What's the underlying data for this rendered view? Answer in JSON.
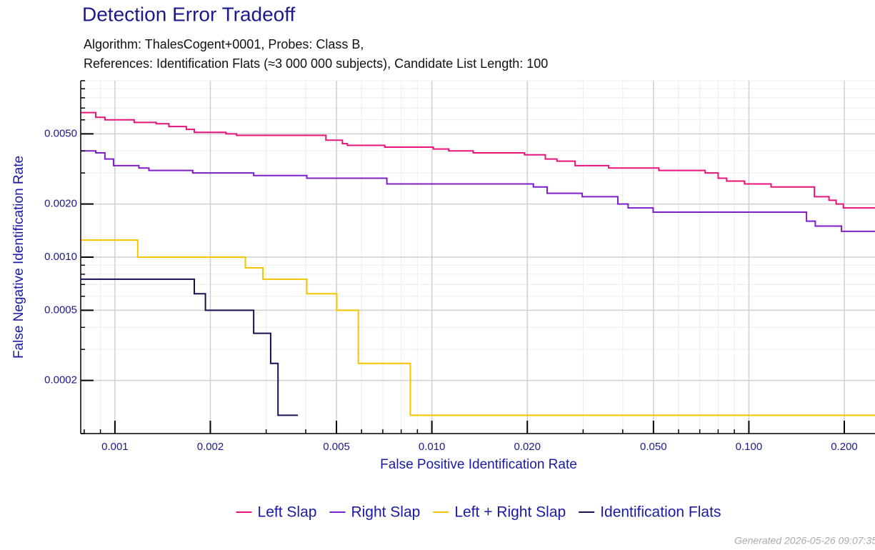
{
  "chart_data": {
    "type": "line",
    "title": "Detection Error Tradeoff",
    "subtitle": [
      "Algorithm: ThalesCogent+0001, Probes: Class B,",
      "References: Identification Flats (≈3 000 000 subjects), Candidate List Length: 100"
    ],
    "x_label": "False Positive Identification Rate",
    "y_label": "False Negative Identification Rate",
    "footer": "Generated 2026-05-26 09:07:35",
    "log_x": true,
    "log_y": true,
    "grid": true,
    "step": true,
    "legend": "bottom",
    "xlim": [
      0.00078,
      0.25
    ],
    "ylim": [
      0.0001,
      0.01
    ],
    "xticks": [
      {
        "value": 0.001,
        "label": "0.001"
      },
      {
        "value": 0.002,
        "label": "0.002"
      },
      {
        "value": 0.005,
        "label": "0.005"
      },
      {
        "value": 0.01,
        "label": "0.010"
      },
      {
        "value": 0.02,
        "label": "0.020"
      },
      {
        "value": 0.05,
        "label": "0.050"
      },
      {
        "value": 0.1,
        "label": "0.100"
      },
      {
        "value": 0.2,
        "label": "0.200"
      }
    ],
    "yticks": [
      {
        "value": 0.0002,
        "label": "0.0002"
      },
      {
        "value": 0.0005,
        "label": "0.0005"
      },
      {
        "value": 0.001,
        "label": "0.0010"
      },
      {
        "value": 0.002,
        "label": "0.0020"
      },
      {
        "value": 0.005,
        "label": "0.0050"
      }
    ],
    "series": [
      {
        "name": "Left Slap",
        "color": "#e8137a",
        "x": [
          0.00078,
          0.00087,
          0.00093,
          0.00115,
          0.00135,
          0.00148,
          0.00168,
          0.00178,
          0.00224,
          0.00242,
          0.00463,
          0.00522,
          0.00541,
          0.0071,
          0.0101,
          0.0113,
          0.0135,
          0.0196,
          0.0228,
          0.0248,
          0.0283,
          0.0361,
          0.052,
          0.0728,
          0.08,
          0.0851,
          0.0969,
          0.1175,
          0.161,
          0.179,
          0.1885,
          0.1986,
          0.25
        ],
        "values": [
          0.0066,
          0.0062,
          0.006,
          0.0058,
          0.0057,
          0.0055,
          0.0053,
          0.0051,
          0.005,
          0.0049,
          0.0046,
          0.0044,
          0.0043,
          0.0042,
          0.0041,
          0.004,
          0.0039,
          0.0038,
          0.0036,
          0.0035,
          0.0033,
          0.0032,
          0.0031,
          0.003,
          0.0028,
          0.0027,
          0.0026,
          0.0025,
          0.0022,
          0.0021,
          0.002,
          0.0019,
          0.0019
        ]
      },
      {
        "name": "Right Slap",
        "color": "#7e1fc9",
        "x": [
          0.00078,
          0.00087,
          0.00093,
          0.00099,
          0.00119,
          0.00128,
          0.00176,
          0.00274,
          0.00403,
          0.00721,
          0.0209,
          0.0231,
          0.0298,
          0.0386,
          0.0416,
          0.0499,
          0.152,
          0.162,
          0.196,
          0.25
        ],
        "values": [
          0.004,
          0.0039,
          0.0036,
          0.0033,
          0.0032,
          0.0031,
          0.003,
          0.0029,
          0.0028,
          0.0026,
          0.0025,
          0.0023,
          0.0022,
          0.002,
          0.0019,
          0.0018,
          0.0016,
          0.0015,
          0.0014,
          0.0014
        ]
      },
      {
        "name": "Left + Right Slap",
        "color": "#f5c400",
        "x": [
          0.00078,
          0.00118,
          0.00258,
          0.00293,
          0.00403,
          0.00501,
          0.00586,
          0.00855,
          0.25
        ],
        "values": [
          0.00125,
          0.001,
          0.00087,
          0.00075,
          0.00062,
          0.0005,
          0.00025,
          0.000127,
          0.000127
        ]
      },
      {
        "name": "Identification Flats",
        "color": "#1a1050",
        "x": [
          0.00078,
          0.00178,
          0.00193,
          0.00274,
          0.0031,
          0.00327,
          0.00378
        ],
        "values": [
          0.00075,
          0.00062,
          0.0005,
          0.00037,
          0.00025,
          0.000127,
          0.000127
        ]
      }
    ]
  }
}
